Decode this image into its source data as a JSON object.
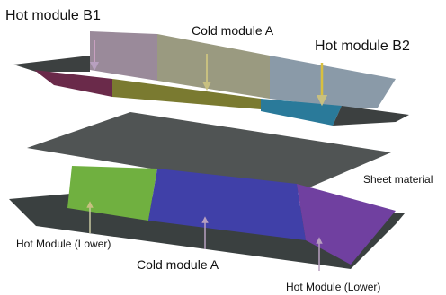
{
  "labels": [
    {
      "text": "Hot module B1"
    },
    {
      "text": "Cold module A"
    },
    {
      "text": "Hot module B2"
    },
    {
      "text": "Sheet material"
    },
    {
      "text": "Hot Module (Lower)"
    },
    {
      "text": "Cold module A"
    },
    {
      "text": "Hot Module (Lower)"
    }
  ]
}
